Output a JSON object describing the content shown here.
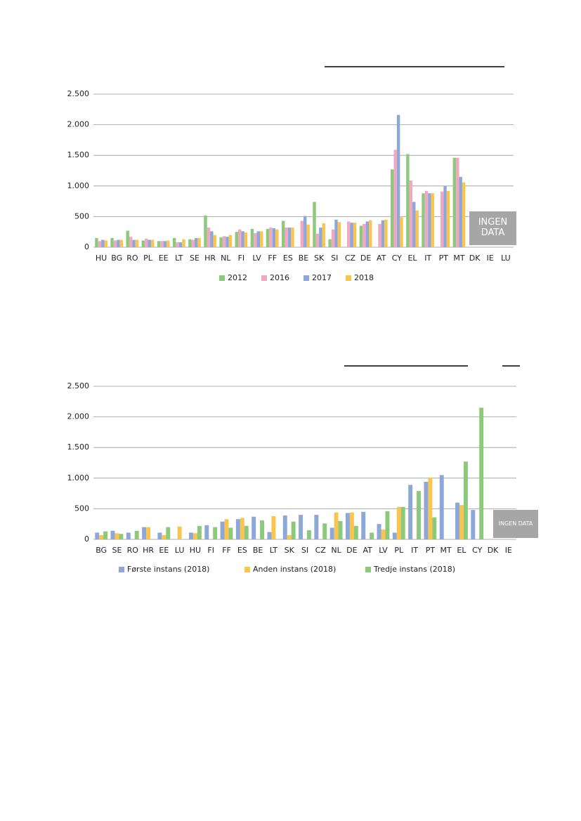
{
  "chart_data": [
    {
      "type": "bar",
      "categories": [
        "HU",
        "BG",
        "RO",
        "PL",
        "EE",
        "LT",
        "SE",
        "HR",
        "NL",
        "FI",
        "LV",
        "FF",
        "ES",
        "BE",
        "SK",
        "SI",
        "CZ",
        "DE",
        "AT",
        "CY",
        "EL",
        "IT",
        "PT",
        "MT",
        "DK",
        "IE",
        "LU"
      ],
      "series": [
        {
          "name": "2012",
          "color": "#8dc97a",
          "values": [
            150,
            150,
            270,
            110,
            100,
            150,
            130,
            520,
            160,
            250,
            300,
            300,
            430,
            null,
            740,
            130,
            null,
            350,
            null,
            1270,
            1520,
            880,
            null,
            1460,
            null,
            null,
            null
          ]
        },
        {
          "name": "2016",
          "color": "#f2a8c4",
          "values": [
            100,
            110,
            170,
            140,
            100,
            80,
            120,
            320,
            180,
            290,
            230,
            320,
            320,
            430,
            220,
            290,
            420,
            380,
            380,
            1590,
            1090,
            920,
            910,
            1460,
            null,
            null,
            null
          ]
        },
        {
          "name": "2017",
          "color": "#8ea7d9",
          "values": [
            120,
            120,
            120,
            120,
            100,
            80,
            150,
            260,
            170,
            260,
            260,
            310,
            320,
            510,
            320,
            450,
            400,
            420,
            440,
            2160,
            740,
            880,
            1000,
            1150,
            null,
            null,
            null
          ]
        },
        {
          "name": "2018",
          "color": "#f9c54e",
          "values": [
            110,
            120,
            120,
            120,
            110,
            130,
            150,
            200,
            200,
            240,
            260,
            290,
            320,
            370,
            390,
            410,
            400,
            440,
            450,
            490,
            600,
            880,
            920,
            1060,
            null,
            null,
            null
          ]
        }
      ],
      "ylim": [
        0,
        2500
      ],
      "yticks": [
        0,
        500,
        {
          "value": 1000,
          "label": "1.000"
        },
        {
          "value": 1500,
          "label": "1.500"
        },
        {
          "value": 2000,
          "label": "2.000"
        },
        {
          "value": 2500,
          "label": "2.500"
        }
      ],
      "grid": true,
      "legend": "bottom",
      "annotation": "INGEN DATA"
    },
    {
      "type": "bar",
      "categories": [
        "BG",
        "SE",
        "RO",
        "HR",
        "EE",
        "LU",
        "HU",
        "FI",
        "FF",
        "ES",
        "BE",
        "LT",
        "SK",
        "SI",
        "CZ",
        "NL",
        "DE",
        "AT",
        "LV",
        "PL",
        "IT",
        "PT",
        "MT",
        "EL",
        "CY",
        "DK",
        "IE"
      ],
      "series": [
        {
          "name": "Første instans (2018)",
          "color": "#8ea7d9",
          "values": [
            110,
            140,
            110,
            200,
            110,
            null,
            110,
            230,
            290,
            330,
            370,
            120,
            390,
            400,
            400,
            190,
            430,
            450,
            250,
            110,
            890,
            940,
            1050,
            600,
            480,
            null,
            null
          ]
        },
        {
          "name": "Anden instans (2018)",
          "color": "#f9c54e",
          "values": [
            70,
            100,
            null,
            200,
            70,
            210,
            100,
            null,
            330,
            350,
            null,
            380,
            70,
            null,
            null,
            440,
            440,
            null,
            160,
            530,
            null,
            1010,
            null,
            560,
            null,
            null,
            null
          ]
        },
        {
          "name": "Tredje instans (2018)",
          "color": "#8dc97a",
          "values": [
            130,
            90,
            140,
            null,
            200,
            null,
            220,
            200,
            190,
            220,
            310,
            null,
            290,
            150,
            260,
            300,
            220,
            110,
            460,
            530,
            790,
            360,
            null,
            1270,
            2150,
            null,
            null
          ]
        }
      ],
      "ylim": [
        0,
        2500
      ],
      "yticks": [
        0,
        500,
        {
          "value": 1000,
          "label": "1.000"
        },
        {
          "value": 1500,
          "label": "1.500"
        },
        {
          "value": 2000,
          "label": "2.000"
        },
        {
          "value": 2500,
          "label": "2.500"
        }
      ],
      "grid": true,
      "legend": "bottom",
      "annotation": "INGEN DATA"
    }
  ]
}
